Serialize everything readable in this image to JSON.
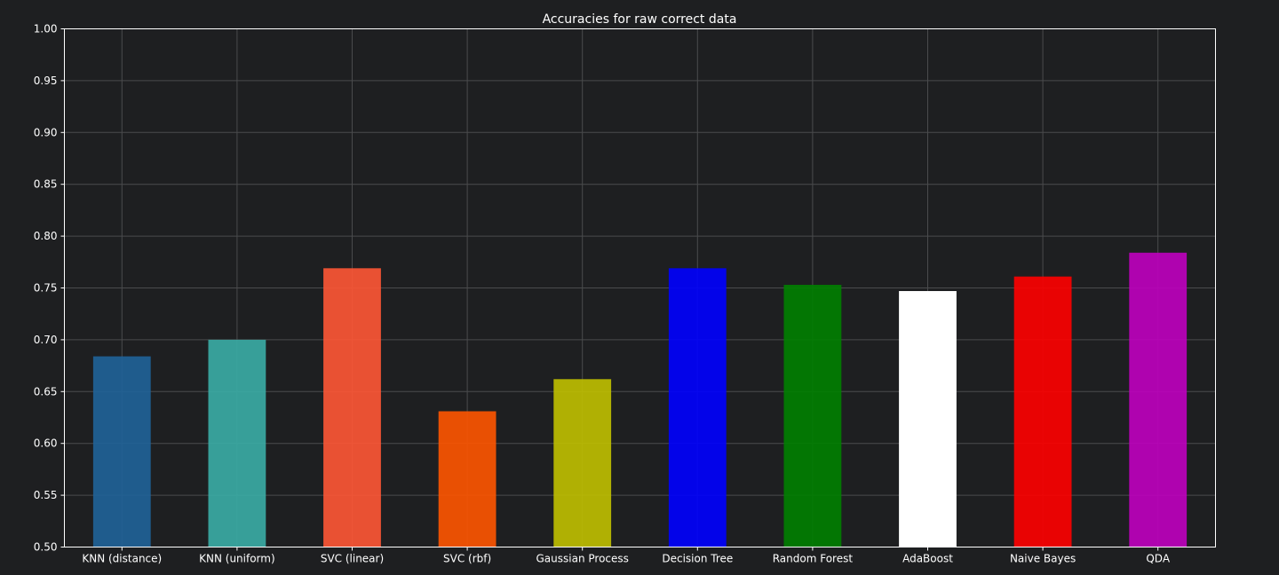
{
  "chart_data": {
    "type": "bar",
    "title": "Accuracies for raw correct data",
    "xlabel": "",
    "ylabel": "",
    "ylim": [
      0.5,
      1.0
    ],
    "yticks": [
      "0.50",
      "0.55",
      "0.60",
      "0.65",
      "0.70",
      "0.75",
      "0.80",
      "0.85",
      "0.90",
      "0.95",
      "1.00"
    ],
    "grid": true,
    "categories": [
      "KNN (distance)",
      "KNN (uniform)",
      "SVC (linear)",
      "SVC (rbf)",
      "Gaussian Process",
      "Decision Tree",
      "Random Forest",
      "AdaBoost",
      "Naive Bayes",
      "QDA"
    ],
    "values": [
      0.684,
      0.7,
      0.769,
      0.631,
      0.662,
      0.769,
      0.753,
      0.747,
      0.761,
      0.784
    ],
    "colors": [
      "#1f6399",
      "#3aada6",
      "#ff5735",
      "#ff5500",
      "#c0c000",
      "#0000ff",
      "#008000",
      "#ffffff",
      "#ff0000",
      "#bf00bf"
    ]
  }
}
